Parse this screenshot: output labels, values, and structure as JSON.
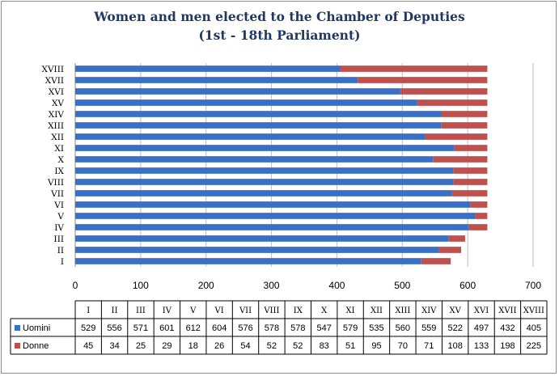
{
  "chart_data": {
    "type": "bar",
    "orientation": "horizontal",
    "stacked": true,
    "title": "Women and men elected to the Chamber of Deputies",
    "subtitle": "(1st - 18th Parliament)",
    "categories": [
      "I",
      "II",
      "III",
      "IV",
      "V",
      "VI",
      "VII",
      "VIII",
      "IX",
      "X",
      "XI",
      "XII",
      "XIII",
      "XIV",
      "XV",
      "XVI",
      "XVII",
      "XVIII"
    ],
    "series": [
      {
        "name": "Uomini",
        "color": "#3a6fc8",
        "values": [
          529,
          556,
          571,
          601,
          612,
          604,
          576,
          578,
          578,
          547,
          579,
          535,
          560,
          559,
          522,
          497,
          432,
          405
        ]
      },
      {
        "name": "Donne",
        "color": "#c0504d",
        "values": [
          45,
          34,
          25,
          29,
          18,
          26,
          54,
          52,
          52,
          83,
          51,
          95,
          70,
          71,
          108,
          133,
          198,
          225
        ]
      }
    ],
    "xlim": [
      0,
      700
    ],
    "x_ticks": [
      "0",
      "100",
      "200",
      "300",
      "400",
      "500",
      "600",
      "700"
    ],
    "grid": true,
    "legend": "data table below chart"
  }
}
